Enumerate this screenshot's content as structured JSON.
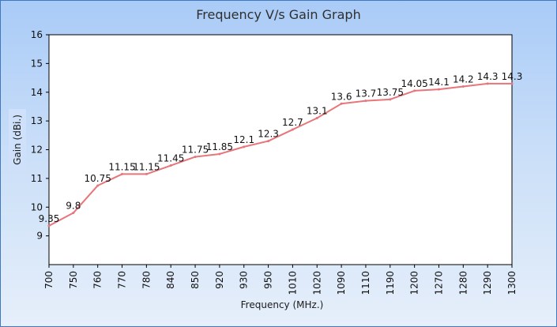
{
  "chart_data": {
    "type": "line",
    "title": "Frequency V/s Gain Graph",
    "xlabel": "Frequency (MHz.)",
    "ylabel": "Gain (dBi.)",
    "categories": [
      "700",
      "750",
      "760",
      "770",
      "780",
      "840",
      "850",
      "920",
      "930",
      "950",
      "1010",
      "1020",
      "1090",
      "1110",
      "1190",
      "1200",
      "1270",
      "1280",
      "1290",
      "1300"
    ],
    "series": [
      {
        "values": [
          9.35,
          9.8,
          10.75,
          11.15,
          11.15,
          11.45,
          11.75,
          11.85,
          12.1,
          12.3,
          12.7,
          13.1,
          13.6,
          13.7,
          13.75,
          14.05,
          14.1,
          14.2,
          14.3,
          14.3
        ],
        "data_labels": [
          "9.35",
          "9.8",
          "10.75",
          "11.15",
          "11.15",
          "11.45",
          "11.75",
          "11.85",
          "12.1",
          "12.3",
          "12.7",
          "13.1",
          "13.6",
          "13.7",
          "13.75",
          "14.05",
          "14.1",
          "14.2",
          "14.3",
          "14.3"
        ],
        "color": "#e8757a"
      }
    ],
    "ylim": [
      8,
      16
    ],
    "yticks": [
      "9",
      "10",
      "11",
      "12",
      "13",
      "14",
      "15",
      "16"
    ],
    "grid": false,
    "legend": "none",
    "colors": {
      "plot_background": "#ffffff",
      "frame_border": "#3f78c0",
      "background_top": "#a9cbf7",
      "background_bottom": "#e6effa"
    }
  }
}
